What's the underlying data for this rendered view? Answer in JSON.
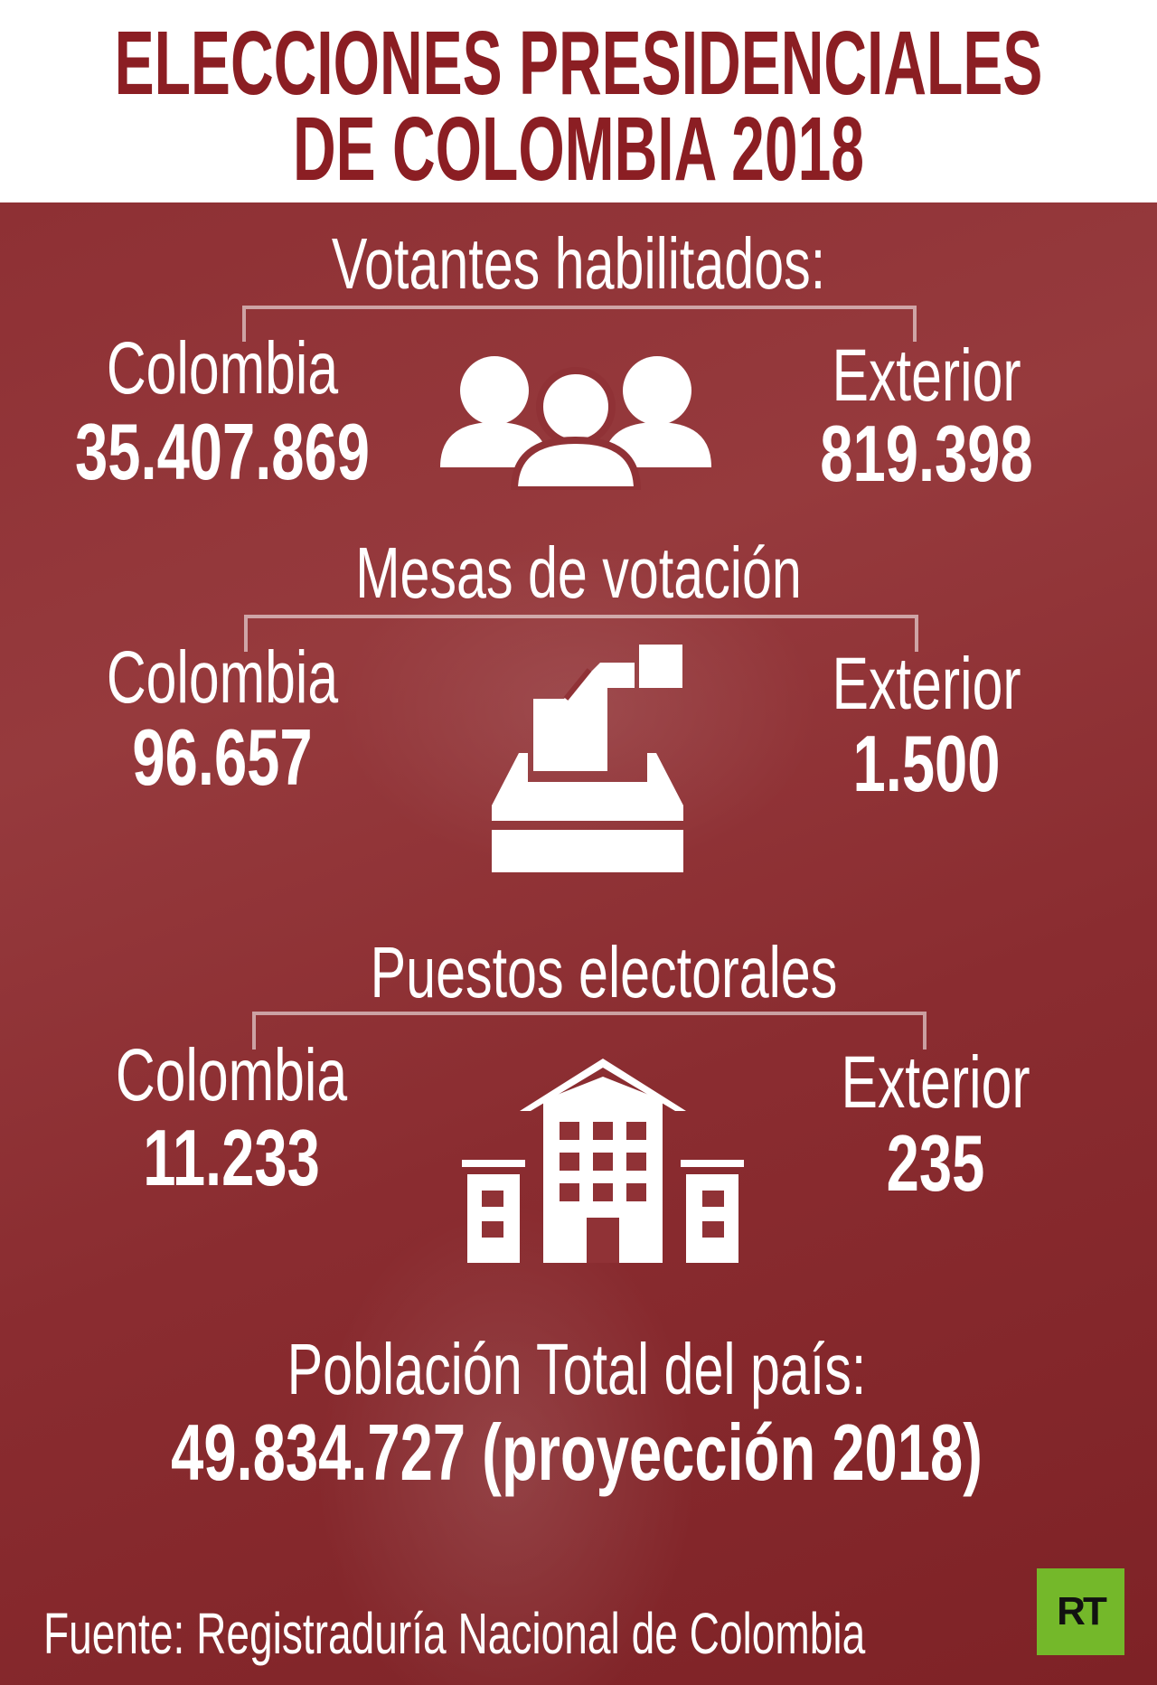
{
  "title": {
    "line1": "ELECCIONES PRESIDENCIALES",
    "line2": "DE COLOMBIA 2018"
  },
  "sections": [
    {
      "heading": "Votantes habilitados:",
      "left_label": "Colombia",
      "left_value": "35.407.869",
      "right_label": "Exterior",
      "right_value": "819.398",
      "icon": "people-group-icon"
    },
    {
      "heading": "Mesas de votación",
      "left_label": "Colombia",
      "left_value": "96.657",
      "right_label": "Exterior",
      "right_value": "1.500",
      "icon": "ballot-box-icon"
    },
    {
      "heading": "Puestos electorales",
      "left_label": "Colombia",
      "left_value": "11.233",
      "right_label": "Exterior",
      "right_value": "235",
      "icon": "building-icon"
    }
  ],
  "population": {
    "label": "Población Total del país:",
    "value": "49.834.727 (proyección 2018)"
  },
  "source": "Fuente: Registraduría Nacional de Colombia",
  "logo": {
    "text": "RT",
    "color": "#74b82a"
  },
  "colors": {
    "title": "#8b1e23",
    "overlay": "#8e3034",
    "text": "#ffffff"
  }
}
